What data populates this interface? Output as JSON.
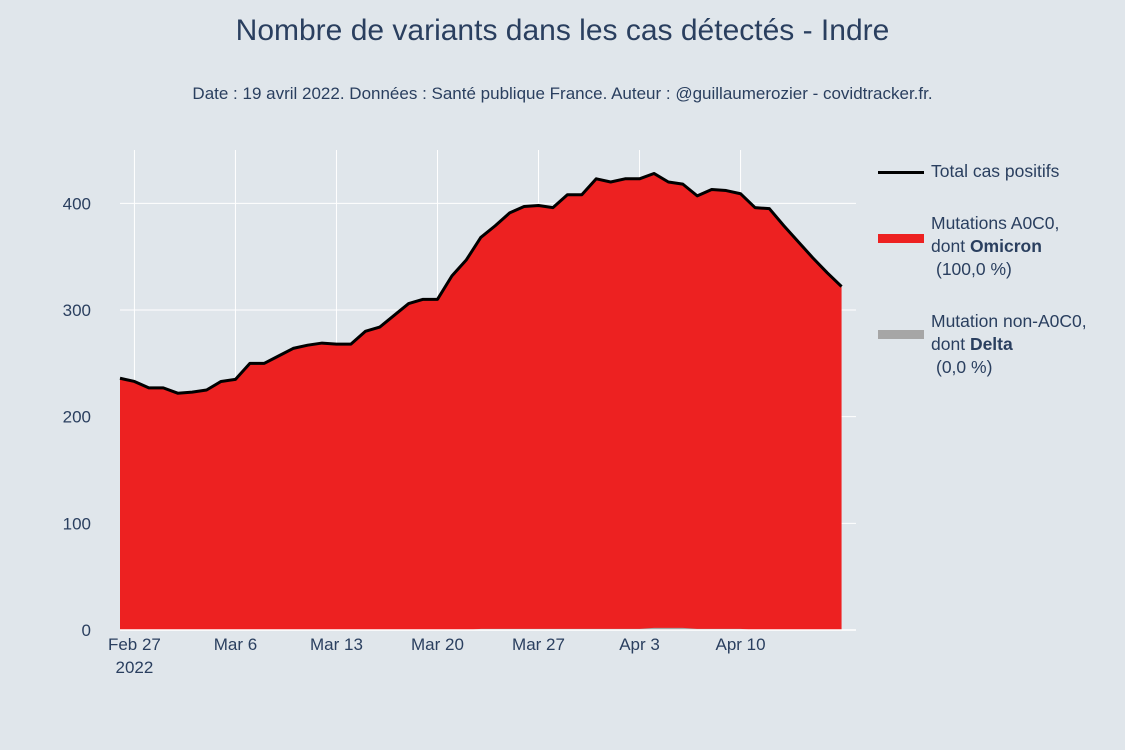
{
  "title": "Nombre de variants dans les cas détectés - Indre",
  "subtitle": "Date : 19 avril 2022. Données : Santé publique France. Auteur : @guillaumerozier - covidtracker.fr.",
  "colors": {
    "background": "#e0e6eb",
    "total_line": "#000000",
    "a0c0": "#ed2121",
    "non_a0c0": "#a6a6a6",
    "grid": "#ffffff",
    "text": "#2a3f5f"
  },
  "legend": {
    "total": {
      "label": "Total cas positifs"
    },
    "a0c0": {
      "line1": "Mutations A0C0,",
      "line2_prefix": "dont ",
      "line2_bold": "Omicron",
      "line3": "(100,0 %)"
    },
    "non_a0c0": {
      "line1": "Mutation non-A0C0,",
      "line2_prefix": "dont ",
      "line2_bold": "Delta",
      "line3": "(0,0 %)"
    }
  },
  "chart_data": {
    "type": "area",
    "title": "Nombre de variants dans les cas détectés - Indre",
    "xlabel": "",
    "ylabel": "",
    "x_start": "2022-02-26",
    "x_end": "2022-04-18",
    "xlim": [
      "2022-02-26",
      "2022-04-18"
    ],
    "ylim": [
      0,
      450
    ],
    "y_ticks": [
      0,
      100,
      200,
      300,
      400
    ],
    "y_tick_labels": [
      "0",
      "100",
      "200",
      "300",
      "400"
    ],
    "x_ticks": [
      {
        "date": "2022-02-27",
        "label": "Feb 27",
        "sublabel": "2022"
      },
      {
        "date": "2022-03-06",
        "label": "Mar 6",
        "sublabel": ""
      },
      {
        "date": "2022-03-13",
        "label": "Mar 13",
        "sublabel": ""
      },
      {
        "date": "2022-03-20",
        "label": "Mar 20",
        "sublabel": ""
      },
      {
        "date": "2022-03-27",
        "label": "Mar 27",
        "sublabel": ""
      },
      {
        "date": "2022-04-03",
        "label": "Apr 3",
        "sublabel": ""
      },
      {
        "date": "2022-04-10",
        "label": "Apr 10",
        "sublabel": ""
      }
    ],
    "grid": true,
    "legend_position": "right",
    "series": [
      {
        "name": "Total cas positifs",
        "kind": "line",
        "values": [
          236,
          233,
          227,
          227,
          222,
          223,
          225,
          233,
          235,
          250,
          250,
          257,
          264,
          267,
          269,
          268,
          268,
          280,
          284,
          295,
          306,
          310,
          310,
          332,
          347,
          368,
          379,
          391,
          397,
          398,
          396,
          408,
          408,
          423,
          420,
          423,
          423,
          428,
          420,
          418,
          407,
          413,
          412,
          409,
          396,
          395,
          379,
          364,
          349,
          335,
          322
        ]
      },
      {
        "name": "Mutations A0C0, dont Omicron (100,0 %)",
        "kind": "area",
        "values": [
          236,
          233,
          227,
          227,
          222,
          223,
          225,
          233,
          235,
          250,
          250,
          257,
          264,
          267,
          269,
          268,
          268,
          280,
          284,
          295,
          306,
          310,
          310,
          332,
          347,
          368,
          379,
          391,
          397,
          398,
          396,
          408,
          408,
          423,
          420,
          423,
          423,
          428,
          420,
          418,
          407,
          413,
          412,
          409,
          396,
          395,
          379,
          364,
          349,
          335,
          322
        ]
      },
      {
        "name": "Mutation non-A0C0, dont Delta (0,0 %)",
        "kind": "area",
        "values": [
          0,
          0,
          0,
          0,
          0,
          0,
          0,
          0,
          0,
          0,
          0,
          0,
          0,
          0,
          0,
          0,
          0,
          0,
          0,
          0,
          0,
          0,
          0,
          0,
          0,
          1,
          1,
          1,
          1,
          1,
          1,
          1,
          1,
          1,
          1,
          1,
          1,
          2,
          2,
          2,
          1,
          1,
          1,
          1,
          0,
          0,
          0,
          0,
          0,
          0,
          0
        ]
      }
    ]
  }
}
